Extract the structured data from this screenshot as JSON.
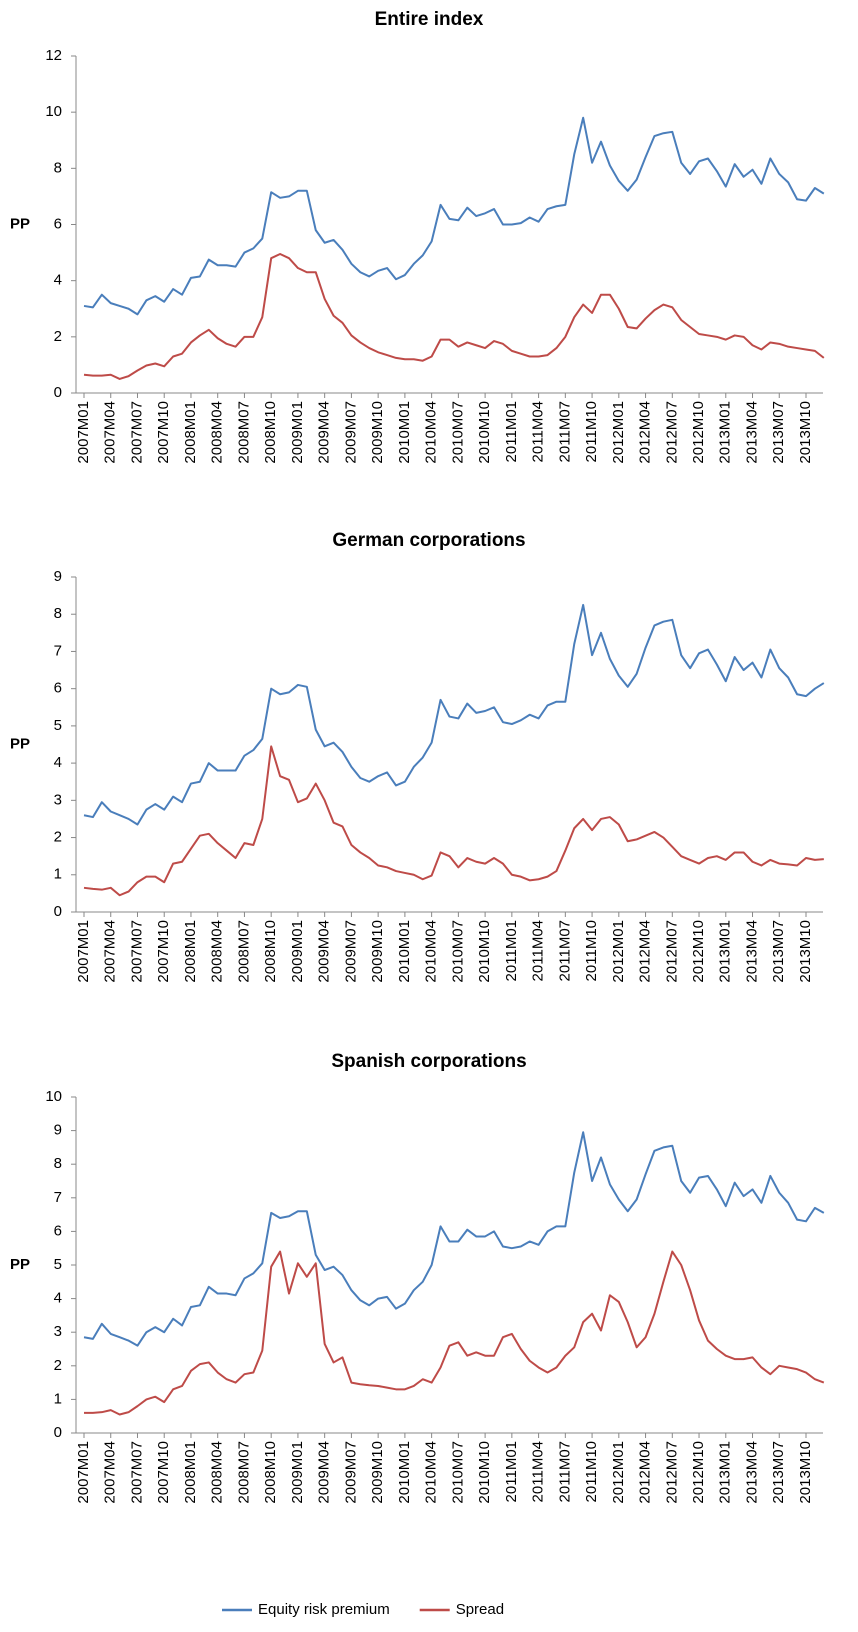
{
  "chart_data": [
    {
      "type": "line",
      "title": "Entire index",
      "ylabel": "PP",
      "categories": [
        "2007M01",
        null,
        null,
        "2007M04",
        null,
        null,
        "2007M07",
        null,
        null,
        "2007M10",
        null,
        null,
        "2008M01",
        null,
        null,
        "2008M04",
        null,
        null,
        "2008M07",
        null,
        null,
        "2008M10",
        null,
        null,
        "2009M01",
        null,
        null,
        "2009M04",
        null,
        null,
        "2009M07",
        null,
        null,
        "2009M10",
        null,
        null,
        "2010M01",
        null,
        null,
        "2010M04",
        null,
        null,
        "2010M07",
        null,
        null,
        "2010M10",
        null,
        null,
        "2011M01",
        null,
        null,
        "2011M04",
        null,
        null,
        "2011M07",
        null,
        null,
        "2011M10",
        null,
        null,
        "2012M01",
        null,
        null,
        "2012M04",
        null,
        null,
        "2012M07",
        null,
        null,
        "2012M10",
        null,
        null,
        "2013M01",
        null,
        null,
        "2013M04",
        null,
        null,
        "2013M07",
        null,
        null,
        "2013M10",
        null,
        null
      ],
      "series": [
        {
          "name": "Equity risk premium",
          "color": "#4a7ebb",
          "values": [
            3.1,
            3.05,
            3.5,
            3.2,
            3.1,
            3.0,
            2.8,
            3.3,
            3.45,
            3.25,
            3.7,
            3.5,
            4.1,
            4.15,
            4.75,
            4.55,
            4.55,
            4.5,
            5.0,
            5.15,
            5.5,
            7.15,
            6.95,
            7.0,
            7.2,
            7.2,
            5.8,
            5.35,
            5.45,
            5.1,
            4.6,
            4.3,
            4.15,
            4.35,
            4.45,
            4.05,
            4.2,
            4.6,
            4.9,
            5.4,
            6.7,
            6.2,
            6.15,
            6.6,
            6.3,
            6.4,
            6.55,
            6.0,
            6.0,
            6.05,
            6.25,
            6.1,
            6.55,
            6.65,
            6.7,
            8.5,
            9.8,
            8.2,
            8.95,
            8.1,
            7.55,
            7.2,
            7.6,
            8.4,
            9.15,
            9.25,
            9.3,
            8.2,
            7.8,
            8.25,
            8.35,
            7.9,
            7.35,
            8.15,
            7.7,
            7.95,
            7.45,
            8.35,
            7.8,
            7.5,
            6.9,
            6.85,
            7.3,
            7.1
          ]
        },
        {
          "name": "Spread",
          "color": "#be4b48",
          "values": [
            0.65,
            0.62,
            0.62,
            0.65,
            0.5,
            0.6,
            0.8,
            0.98,
            1.05,
            0.95,
            1.3,
            1.4,
            1.8,
            2.05,
            2.25,
            1.95,
            1.75,
            1.65,
            2.0,
            2.0,
            2.7,
            4.8,
            4.95,
            4.8,
            4.45,
            4.3,
            4.3,
            3.35,
            2.75,
            2.5,
            2.05,
            1.8,
            1.6,
            1.45,
            1.35,
            1.25,
            1.2,
            1.2,
            1.15,
            1.3,
            1.9,
            1.9,
            1.65,
            1.8,
            1.7,
            1.6,
            1.85,
            1.75,
            1.5,
            1.4,
            1.3,
            1.3,
            1.35,
            1.6,
            2.0,
            2.7,
            3.15,
            2.85,
            3.5,
            3.5,
            3.0,
            2.35,
            2.3,
            2.65,
            2.95,
            3.15,
            3.05,
            2.6,
            2.35,
            2.1,
            2.05,
            2.0,
            1.9,
            2.05,
            2.0,
            1.7,
            1.55,
            1.8,
            1.75,
            1.65,
            1.6,
            1.55,
            1.5,
            1.25
          ]
        }
      ],
      "ylim": [
        0,
        12
      ],
      "yticks": [
        0,
        2,
        4,
        6,
        8,
        10,
        12
      ]
    },
    {
      "type": "line",
      "title": "German corporations",
      "ylabel": "PP",
      "categories": [
        "2007M01",
        null,
        null,
        "2007M04",
        null,
        null,
        "2007M07",
        null,
        null,
        "2007M10",
        null,
        null,
        "2008M01",
        null,
        null,
        "2008M04",
        null,
        null,
        "2008M07",
        null,
        null,
        "2008M10",
        null,
        null,
        "2009M01",
        null,
        null,
        "2009M04",
        null,
        null,
        "2009M07",
        null,
        null,
        "2009M10",
        null,
        null,
        "2010M01",
        null,
        null,
        "2010M04",
        null,
        null,
        "2010M07",
        null,
        null,
        "2010M10",
        null,
        null,
        "2011M01",
        null,
        null,
        "2011M04",
        null,
        null,
        "2011M07",
        null,
        null,
        "2011M10",
        null,
        null,
        "2012M01",
        null,
        null,
        "2012M04",
        null,
        null,
        "2012M07",
        null,
        null,
        "2012M10",
        null,
        null,
        "2013M01",
        null,
        null,
        "2013M04",
        null,
        null,
        "2013M07",
        null,
        null,
        "2013M10",
        null,
        null
      ],
      "series": [
        {
          "name": "Equity risk premium",
          "color": "#4a7ebb",
          "values": [
            2.6,
            2.55,
            2.95,
            2.7,
            2.6,
            2.5,
            2.35,
            2.75,
            2.9,
            2.75,
            3.1,
            2.95,
            3.45,
            3.5,
            4.0,
            3.8,
            3.8,
            3.8,
            4.2,
            4.35,
            4.65,
            6.0,
            5.85,
            5.9,
            6.1,
            6.05,
            4.9,
            4.45,
            4.55,
            4.3,
            3.9,
            3.6,
            3.5,
            3.65,
            3.75,
            3.4,
            3.5,
            3.9,
            4.15,
            4.55,
            5.7,
            5.25,
            5.2,
            5.6,
            5.35,
            5.4,
            5.5,
            5.1,
            5.05,
            5.15,
            5.3,
            5.2,
            5.55,
            5.65,
            5.65,
            7.2,
            8.25,
            6.9,
            7.5,
            6.8,
            6.35,
            6.05,
            6.4,
            7.1,
            7.7,
            7.8,
            7.85,
            6.9,
            6.55,
            6.95,
            7.05,
            6.65,
            6.2,
            6.85,
            6.5,
            6.7,
            6.3,
            7.05,
            6.55,
            6.3,
            5.85,
            5.8,
            6.0,
            6.15
          ]
        },
        {
          "name": "Spread",
          "color": "#be4b48",
          "values": [
            0.65,
            0.62,
            0.6,
            0.65,
            0.45,
            0.55,
            0.8,
            0.95,
            0.95,
            0.8,
            1.3,
            1.35,
            1.7,
            2.05,
            2.1,
            1.85,
            1.65,
            1.45,
            1.85,
            1.8,
            2.5,
            4.45,
            3.65,
            3.55,
            2.95,
            3.05,
            3.45,
            3.0,
            2.4,
            2.3,
            1.8,
            1.6,
            1.45,
            1.25,
            1.2,
            1.1,
            1.05,
            1.0,
            0.88,
            0.98,
            1.6,
            1.5,
            1.2,
            1.45,
            1.35,
            1.3,
            1.45,
            1.3,
            1.0,
            0.95,
            0.85,
            0.88,
            0.95,
            1.1,
            1.65,
            2.25,
            2.5,
            2.2,
            2.5,
            2.55,
            2.35,
            1.9,
            1.95,
            2.05,
            2.15,
            2.0,
            1.75,
            1.5,
            1.4,
            1.3,
            1.45,
            1.5,
            1.4,
            1.6,
            1.6,
            1.35,
            1.25,
            1.4,
            1.3,
            1.28,
            1.25,
            1.45,
            1.4,
            1.42
          ]
        }
      ],
      "ylim": [
        0,
        9
      ],
      "yticks": [
        0,
        1,
        2,
        3,
        4,
        5,
        6,
        7,
        8,
        9
      ]
    },
    {
      "type": "line",
      "title": "Spanish corporations",
      "ylabel": "PP",
      "legend": "bottom",
      "categories": [
        "2007M01",
        null,
        null,
        "2007M04",
        null,
        null,
        "2007M07",
        null,
        null,
        "2007M10",
        null,
        null,
        "2008M01",
        null,
        null,
        "2008M04",
        null,
        null,
        "2008M07",
        null,
        null,
        "2008M10",
        null,
        null,
        "2009M01",
        null,
        null,
        "2009M04",
        null,
        null,
        "2009M07",
        null,
        null,
        "2009M10",
        null,
        null,
        "2010M01",
        null,
        null,
        "2010M04",
        null,
        null,
        "2010M07",
        null,
        null,
        "2010M10",
        null,
        null,
        "2011M01",
        null,
        null,
        "2011M04",
        null,
        null,
        "2011M07",
        null,
        null,
        "2011M10",
        null,
        null,
        "2012M01",
        null,
        null,
        "2012M04",
        null,
        null,
        "2012M07",
        null,
        null,
        "2012M10",
        null,
        null,
        "2013M01",
        null,
        null,
        "2013M04",
        null,
        null,
        "2013M07",
        null,
        null,
        "2013M10",
        null,
        null
      ],
      "series": [
        {
          "name": "Equity risk premium",
          "color": "#4a7ebb",
          "values": [
            2.85,
            2.8,
            3.25,
            2.95,
            2.85,
            2.75,
            2.6,
            3.0,
            3.15,
            3.0,
            3.4,
            3.2,
            3.75,
            3.8,
            4.35,
            4.15,
            4.15,
            4.1,
            4.6,
            4.75,
            5.05,
            6.55,
            6.4,
            6.45,
            6.6,
            6.6,
            5.3,
            4.85,
            4.95,
            4.7,
            4.25,
            3.95,
            3.8,
            4.0,
            4.05,
            3.7,
            3.85,
            4.25,
            4.5,
            5.0,
            6.15,
            5.7,
            5.7,
            6.05,
            5.85,
            5.85,
            6.0,
            5.55,
            5.5,
            5.55,
            5.7,
            5.6,
            6.0,
            6.15,
            6.15,
            7.75,
            8.95,
            7.5,
            8.2,
            7.4,
            6.95,
            6.6,
            6.95,
            7.7,
            8.4,
            8.5,
            8.55,
            7.5,
            7.15,
            7.6,
            7.65,
            7.25,
            6.75,
            7.45,
            7.05,
            7.25,
            6.85,
            7.65,
            7.15,
            6.85,
            6.35,
            6.3,
            6.7,
            6.55
          ]
        },
        {
          "name": "Spread",
          "color": "#be4b48",
          "values": [
            0.6,
            0.6,
            0.62,
            0.68,
            0.55,
            0.62,
            0.8,
            1.0,
            1.08,
            0.92,
            1.3,
            1.4,
            1.85,
            2.05,
            2.1,
            1.8,
            1.6,
            1.5,
            1.75,
            1.8,
            2.45,
            4.95,
            5.4,
            4.15,
            5.05,
            4.65,
            5.05,
            2.65,
            2.1,
            2.25,
            1.5,
            1.45,
            1.42,
            1.4,
            1.35,
            1.3,
            1.3,
            1.4,
            1.6,
            1.5,
            1.95,
            2.6,
            2.7,
            2.3,
            2.4,
            2.3,
            2.3,
            2.85,
            2.95,
            2.5,
            2.15,
            1.95,
            1.8,
            1.95,
            2.3,
            2.55,
            3.3,
            3.55,
            3.05,
            4.1,
            3.9,
            3.3,
            2.55,
            2.85,
            3.55,
            4.5,
            5.4,
            5.0,
            4.25,
            3.35,
            2.75,
            2.5,
            2.3,
            2.2,
            2.2,
            2.25,
            1.95,
            1.75,
            2.0,
            1.95,
            1.9,
            1.8,
            1.6,
            1.5
          ]
        }
      ],
      "ylim": [
        0,
        10
      ],
      "yticks": [
        0,
        1,
        2,
        3,
        4,
        5,
        6,
        7,
        8,
        9,
        10
      ]
    }
  ]
}
